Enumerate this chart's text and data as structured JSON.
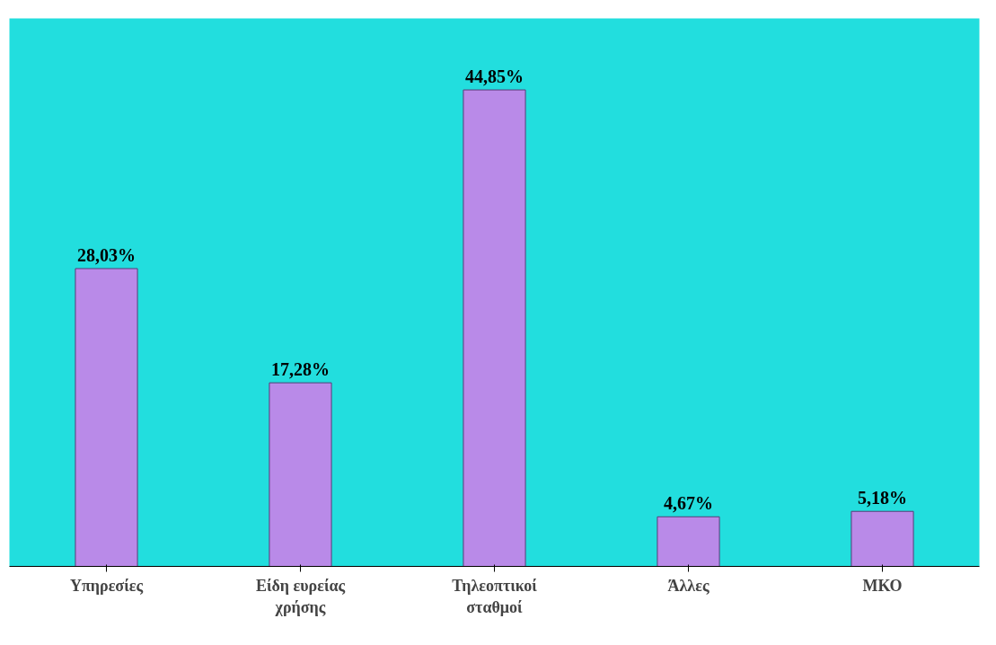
{
  "chart_data": {
    "type": "bar",
    "categories": [
      "Υπηρεσίες",
      "Είδη ευρείας\nχρήσης",
      "Τηλεοπτικοί\nσταθμοί",
      "Άλλες",
      "ΜΚΟ"
    ],
    "values": [
      28.03,
      17.28,
      44.85,
      4.67,
      5.18
    ],
    "value_labels": [
      "28,03%",
      "17,28%",
      "44,85%",
      "4,67%",
      "5,18%"
    ],
    "color": "#b98ae8",
    "grid": false
  }
}
